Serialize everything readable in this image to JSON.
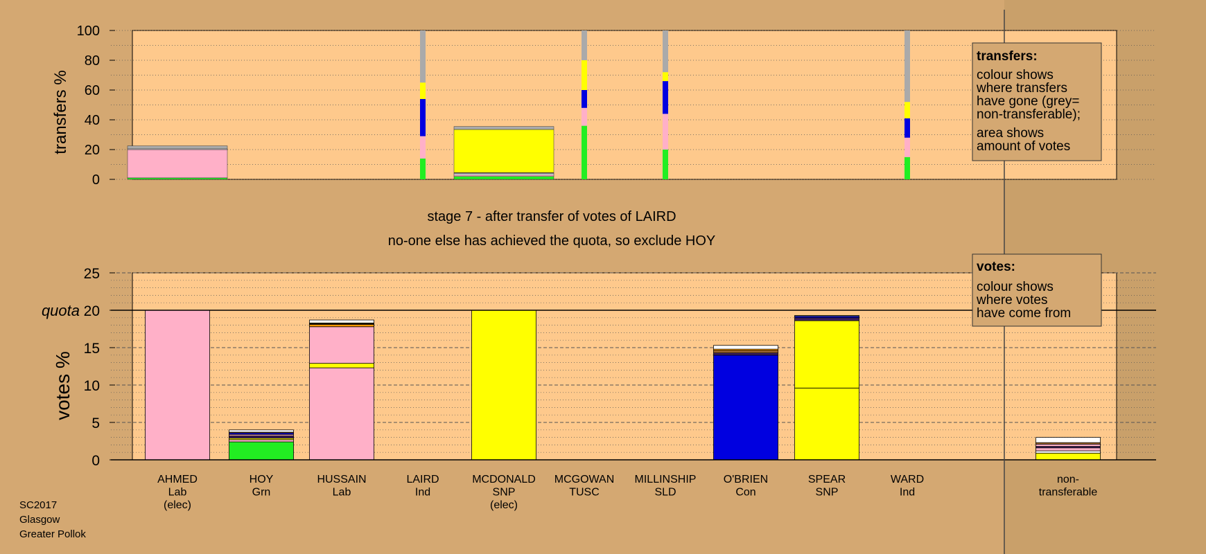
{
  "colors": {
    "background": "#d4a872",
    "panel": "#fec98c",
    "Lab": "#ffb0c8",
    "Grn": "#22ee22",
    "SNP": "#ffff00",
    "Con": "#0000e0",
    "Ind": "#ffffff",
    "TUSC": "#b07030",
    "SLD": "#ff9900",
    "nontransferable": "#aaaaaa",
    "other_dark": "#402060"
  },
  "stage": {
    "line1": "stage 7 - after transfer of votes of LAIRD",
    "line2": "no-one else has achieved the quota, so exclude HOY"
  },
  "footer": [
    "SC2017",
    "Glasgow",
    "Greater Pollok"
  ],
  "legend_transfers": {
    "title": "transfers:",
    "lines": [
      "colour shows",
      "where transfers",
      "have gone (grey=",
      "non-transferable);",
      "area shows",
      "amount of votes"
    ]
  },
  "legend_votes": {
    "title": "votes:",
    "lines": [
      "colour shows",
      "where votes",
      "have come from"
    ]
  },
  "chart_data": [
    {
      "type": "bar",
      "name": "transfers",
      "ylabel": "transfers %",
      "ylim": [
        0,
        100
      ],
      "yticks": [
        "0",
        "20",
        "40",
        "60",
        "80",
        "100"
      ],
      "grid": "dotted",
      "categories": [
        "AHMED",
        "HOY",
        "HUSSAIN",
        "LAIRD",
        "MCDONALD",
        "MCGOWAN",
        "MILLINSHIP",
        "O'BRIEN",
        "SPEAR",
        "WARD"
      ],
      "bars": [
        {
          "category": "AHMED",
          "width_share": "wide",
          "segments": [
            {
              "party": "Grn",
              "value": 1
            },
            {
              "party": "Lab",
              "value": 19
            },
            {
              "party": "Ind",
              "value": 0.5
            },
            {
              "party": "nontransferable",
              "value": 2
            }
          ]
        },
        {
          "category": "LAIRD",
          "width_share": "narrow",
          "segments": [
            {
              "party": "Grn",
              "value": 14
            },
            {
              "party": "Lab",
              "value": 15
            },
            {
              "party": "Con",
              "value": 25
            },
            {
              "party": "SNP",
              "value": 11
            },
            {
              "party": "nontransferable",
              "value": 35
            }
          ]
        },
        {
          "category": "MCDONALD",
          "width_share": "wide",
          "segments": [
            {
              "party": "Grn",
              "value": 2
            },
            {
              "party": "Lab",
              "value": 1
            },
            {
              "party": "Ind",
              "value": 1
            },
            {
              "party": "other_dark",
              "value": 0.5
            },
            {
              "party": "SNP",
              "value": 29
            },
            {
              "party": "nontransferable",
              "value": 2
            }
          ]
        },
        {
          "category": "MCGOWAN",
          "width_share": "narrow",
          "segments": [
            {
              "party": "Grn",
              "value": 36
            },
            {
              "party": "Lab",
              "value": 12
            },
            {
              "party": "Con",
              "value": 12
            },
            {
              "party": "SNP",
              "value": 20
            },
            {
              "party": "nontransferable",
              "value": 20
            }
          ]
        },
        {
          "category": "MILLINSHIP",
          "width_share": "narrow",
          "segments": [
            {
              "party": "Grn",
              "value": 20
            },
            {
              "party": "Lab",
              "value": 24
            },
            {
              "party": "Con",
              "value": 22
            },
            {
              "party": "SNP",
              "value": 6
            },
            {
              "party": "nontransferable",
              "value": 28
            }
          ]
        },
        {
          "category": "WARD",
          "width_share": "narrow",
          "segments": [
            {
              "party": "Grn",
              "value": 15
            },
            {
              "party": "Lab",
              "value": 13
            },
            {
              "party": "Con",
              "value": 13
            },
            {
              "party": "SNP",
              "value": 11
            },
            {
              "party": "nontransferable",
              "value": 48
            }
          ]
        }
      ]
    },
    {
      "type": "bar",
      "name": "votes",
      "ylabel": "votes %",
      "ylim": [
        0,
        25
      ],
      "yticks": [
        "0",
        "5",
        "10",
        "15",
        "20",
        "25"
      ],
      "quota": 20,
      "quota_label": "quota",
      "grid": "dashed",
      "candidates": [
        {
          "name": "AHMED",
          "party": "Lab",
          "note": "(elec)"
        },
        {
          "name": "HOY",
          "party": "Grn",
          "note": ""
        },
        {
          "name": "HUSSAIN",
          "party": "Lab",
          "note": ""
        },
        {
          "name": "LAIRD",
          "party": "Ind",
          "note": ""
        },
        {
          "name": "MCDONALD",
          "party": "SNP",
          "note": "(elec)"
        },
        {
          "name": "MCGOWAN",
          "party": "TUSC",
          "note": ""
        },
        {
          "name": "MILLINSHIP",
          "party": "SLD",
          "note": ""
        },
        {
          "name": "O'BRIEN",
          "party": "Con",
          "note": ""
        },
        {
          "name": "SPEAR",
          "party": "SNP",
          "note": ""
        },
        {
          "name": "WARD",
          "party": "Ind",
          "note": ""
        }
      ],
      "nontransferable_label": [
        "non-",
        "transferable"
      ],
      "bars": [
        {
          "category": "AHMED",
          "segments": [
            {
              "party": "Lab",
              "value": 20
            }
          ]
        },
        {
          "category": "HOY",
          "segments": [
            {
              "party": "Grn",
              "value": 2.4
            },
            {
              "party": "Lab",
              "value": 0.3
            },
            {
              "party": "SNP",
              "value": 0.2
            },
            {
              "party": "other_dark",
              "value": 0.3
            },
            {
              "party": "Lab",
              "value": 0.2
            },
            {
              "party": "Con",
              "value": 0.2
            },
            {
              "party": "SLD",
              "value": 0.1
            },
            {
              "party": "Ind",
              "value": 0.3
            }
          ]
        },
        {
          "category": "HUSSAIN",
          "segments": [
            {
              "party": "Lab",
              "value": 12.3
            },
            {
              "party": "SNP",
              "value": 0.6
            },
            {
              "party": "Lab",
              "value": 4.9
            },
            {
              "party": "SLD",
              "value": 0.3
            },
            {
              "party": "TUSC",
              "value": 0.1
            },
            {
              "party": "SNP",
              "value": 0.1
            },
            {
              "party": "Ind",
              "value": 0.4
            }
          ]
        },
        {
          "category": "MCDONALD",
          "segments": [
            {
              "party": "SNP",
              "value": 20
            }
          ]
        },
        {
          "category": "O'BRIEN",
          "segments": [
            {
              "party": "Con",
              "value": 14.0
            },
            {
              "party": "other_dark",
              "value": 0.3
            },
            {
              "party": "TUSC",
              "value": 0.3
            },
            {
              "party": "SLD",
              "value": 0.2
            },
            {
              "party": "Ind",
              "value": 0.5
            }
          ]
        },
        {
          "category": "SPEAR",
          "segments": [
            {
              "party": "SNP",
              "value": 9.6
            },
            {
              "party": "SNP",
              "value": 9.0
            },
            {
              "party": "other_dark",
              "value": 0.4
            },
            {
              "party": "Con",
              "value": 0.2
            },
            {
              "party": "Ind",
              "value": 0.1
            }
          ]
        },
        {
          "category": "nontransferable",
          "segments": [
            {
              "party": "SNP",
              "value": 0.9
            },
            {
              "party": "Ind",
              "value": 0.3
            },
            {
              "party": "Lab",
              "value": 0.4
            },
            {
              "party": "other_dark",
              "value": 0.2
            },
            {
              "party": "Lab",
              "value": 0.3
            },
            {
              "party": "TUSC",
              "value": 0.2
            },
            {
              "party": "Ind",
              "value": 0.7
            }
          ]
        }
      ]
    }
  ]
}
